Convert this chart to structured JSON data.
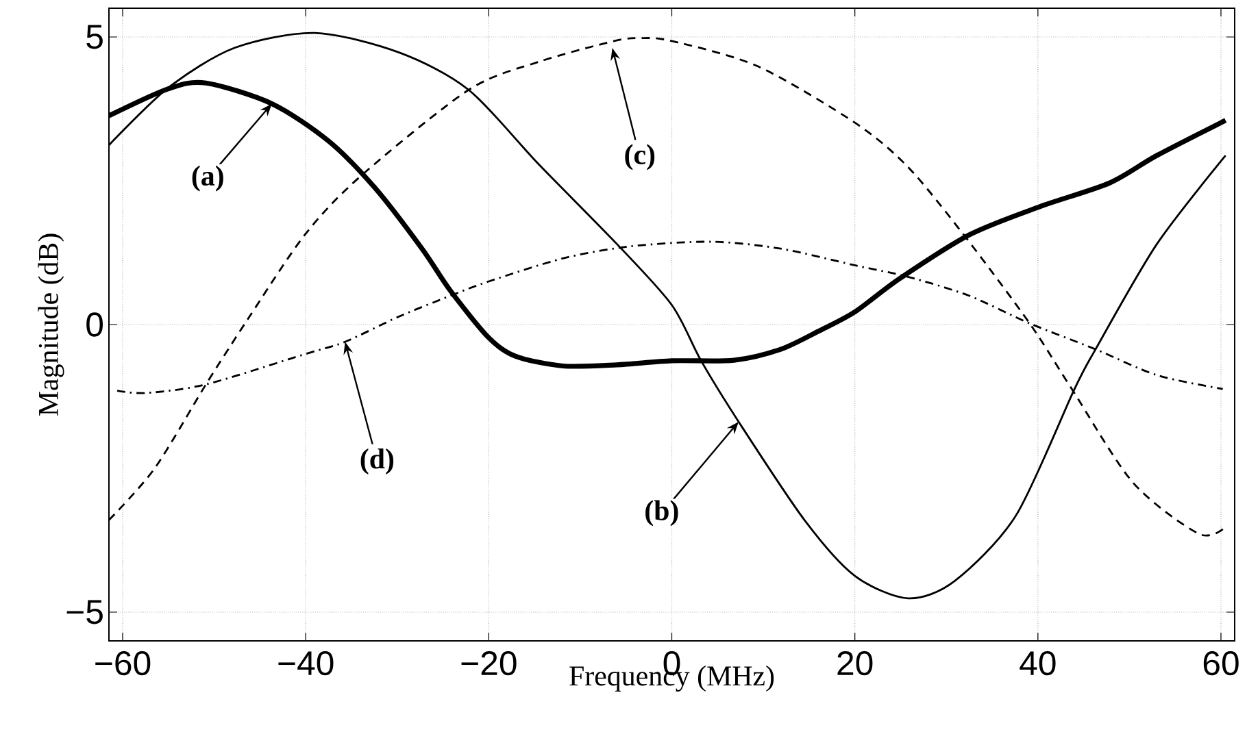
{
  "chart_data": {
    "type": "line",
    "xlabel": "Frequency (MHz)",
    "ylabel": "Magnitude (dB)",
    "xlim": [
      -61.5,
      61.5
    ],
    "ylim": [
      -5.5,
      5.5
    ],
    "xticks": [
      {
        "value": -60,
        "label": "−60"
      },
      {
        "value": -40,
        "label": "−40"
      },
      {
        "value": -20,
        "label": "−20"
      },
      0,
      20,
      40,
      60
    ],
    "yticks": [
      {
        "value": -5,
        "label": "−5"
      },
      0,
      5
    ],
    "grid": true,
    "series": [
      {
        "color": "#000000",
        "line_style": "solid",
        "x": [
          -61.5,
          -55,
          -50.9,
          -43.7,
          -37.5,
          -32.4,
          -27.3,
          -24.2,
          -20,
          -17.1,
          -11.9,
          -6,
          0,
          6.8,
          11.9,
          16.1,
          20,
          24.8,
          32.5,
          40.2,
          47.8,
          53,
          60.5
        ],
        "values": [
          3.63,
          4.1,
          4.2,
          3.84,
          3.19,
          2.37,
          1.32,
          0.59,
          -0.23,
          -0.55,
          -0.72,
          -0.7,
          -0.63,
          -0.62,
          -0.43,
          -0.11,
          0.22,
          0.79,
          1.56,
          2.05,
          2.46,
          2.94,
          3.55
        ]
      },
      {
        "color": "#000000",
        "line_style": "solid",
        "x": [
          -61.5,
          -55,
          -47.8,
          -39,
          -29.8,
          -22.2,
          -14.5,
          -6,
          0,
          3.2,
          7.3,
          14.5,
          20,
          25.8,
          30.9,
          37.6,
          44,
          46.3,
          53,
          60.5
        ],
        "values": [
          3.12,
          4.12,
          4.81,
          5.07,
          4.73,
          4.08,
          2.78,
          1.4,
          0.34,
          -0.63,
          -1.69,
          -3.4,
          -4.37,
          -4.76,
          -4.46,
          -3.32,
          -1.12,
          -0.43,
          1.4,
          2.94
        ]
      },
      {
        "color": "#000000",
        "line_style": "dashed",
        "x": [
          -61.5,
          -56.5,
          -50.9,
          -46.3,
          -40.1,
          -34,
          -22.2,
          -14.5,
          -6.3,
          -3.4,
          0,
          9.4,
          20,
          25.8,
          31.9,
          39.1,
          43.7,
          50.4,
          57.6,
          60.5
        ],
        "values": [
          -3.4,
          -2.5,
          -1.04,
          0.1,
          1.56,
          2.58,
          4.08,
          4.57,
          4.93,
          4.98,
          4.93,
          4.49,
          3.51,
          2.74,
          1.56,
          0.02,
          -1.12,
          -2.75,
          -3.64,
          -3.52
        ]
      },
      {
        "color": "#000000",
        "line_style": "dashdot",
        "x": [
          -60.6,
          -57.5,
          -50.9,
          -40,
          -35.7,
          -29.8,
          -24.2,
          -20,
          -11.9,
          -4.5,
          4.3,
          11.9,
          20,
          25.8,
          32.5,
          39.1,
          46.3,
          53,
          60.2
        ],
        "values": [
          -1.15,
          -1.19,
          -1.04,
          -0.51,
          -0.3,
          0.14,
          0.5,
          0.75,
          1.15,
          1.36,
          1.44,
          1.32,
          1.03,
          0.83,
          0.5,
          0.02,
          -0.43,
          -0.88,
          -1.12
        ]
      }
    ],
    "annotations": [
      {
        "text": "(a)",
        "x": -43.7,
        "y": 3.84
      },
      {
        "text": "(b)",
        "x": 7.3,
        "y": -1.69
      },
      {
        "text": "(c)",
        "x": -6.5,
        "y": 4.81
      },
      {
        "text": "(d)",
        "x": -35.7,
        "y": -0.3
      }
    ]
  }
}
